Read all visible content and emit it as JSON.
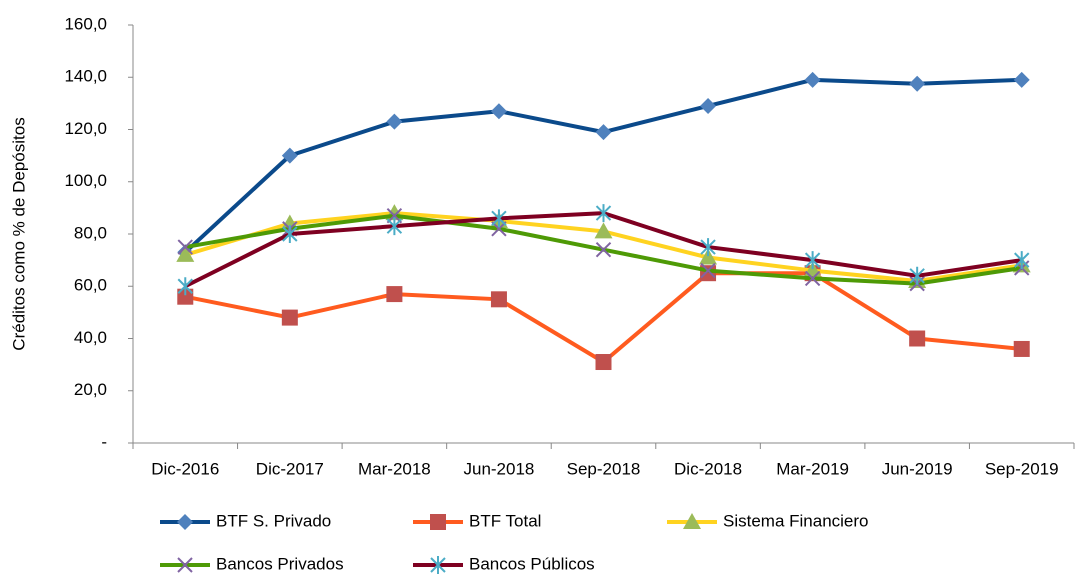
{
  "chart_data": {
    "type": "line",
    "y_label": "Créditos como % de Depósitos",
    "categories": [
      "Dic-2016",
      "Dic-2017",
      "Mar-2018",
      "Jun-2018",
      "Sep-2018",
      "Dic-2018",
      "Mar-2019",
      "Jun-2019",
      "Sep-2019"
    ],
    "ylim": [
      0,
      160
    ],
    "yticks": [
      {
        "value": 0,
        "label": "-"
      },
      {
        "value": 20,
        "label": "20,0"
      },
      {
        "value": 40,
        "label": "40,0"
      },
      {
        "value": 60,
        "label": "60,0"
      },
      {
        "value": 80,
        "label": "80,0"
      },
      {
        "value": 100,
        "label": "100,0"
      },
      {
        "value": 120,
        "label": "120,0"
      },
      {
        "value": 140,
        "label": "140,0"
      },
      {
        "value": 160,
        "label": "160,0"
      }
    ],
    "grid": false,
    "series": [
      {
        "name": "BTF S. Privado",
        "color": "#0b4a8b",
        "marker": "diamond",
        "marker_color": "#4f81bd",
        "values": [
          73,
          110,
          123,
          127,
          119,
          129,
          139,
          137.5,
          139
        ]
      },
      {
        "name": "BTF Total",
        "color": "#ff5b1f",
        "marker": "square",
        "marker_color": "#c0504d",
        "values": [
          56,
          48,
          57,
          55,
          31,
          65,
          65,
          40,
          36
        ]
      },
      {
        "name": "Sistema Financiero",
        "color": "#ffd320",
        "marker": "triangle",
        "marker_color": "#9bbb59",
        "values": [
          72,
          84,
          88,
          85,
          81,
          71,
          66,
          62,
          68
        ]
      },
      {
        "name": "Bancos Privados",
        "color": "#4e9a06",
        "marker": "x",
        "marker_color": "#8064a2",
        "values": [
          75,
          82,
          87,
          82,
          74,
          66,
          63,
          61,
          67
        ]
      },
      {
        "name": "Bancos Públicos",
        "color": "#7e0021",
        "marker": "star",
        "marker_color": "#4bacc6",
        "values": [
          60,
          80,
          83,
          86,
          88,
          75,
          70,
          64,
          70
        ]
      }
    ]
  }
}
